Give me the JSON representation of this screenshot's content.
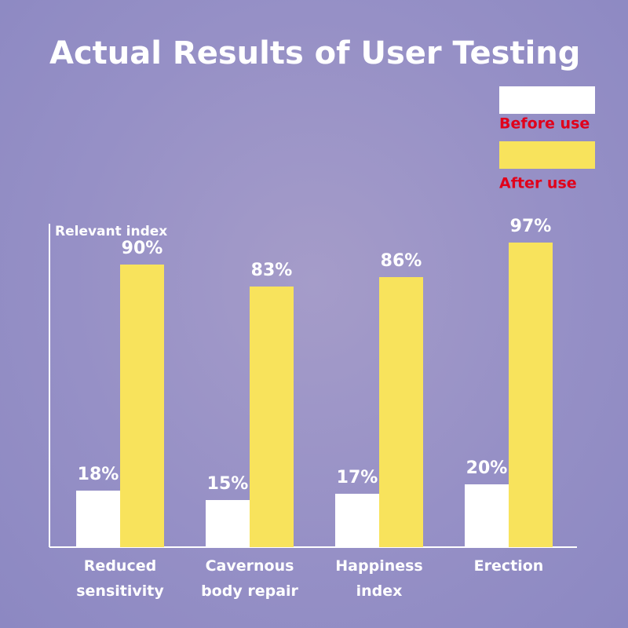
{
  "chart_data": {
    "type": "bar",
    "title": "Actual Results of User Testing",
    "y_label": "Relevant index",
    "categories": [
      "Reduced\nsensitivity",
      "Cavernous\nbody repair",
      "Happiness index",
      "Erection"
    ],
    "series": [
      {
        "name": "Before use",
        "color": "#ffffff",
        "values": [
          18,
          15,
          17,
          20
        ],
        "value_labels": [
          "18%",
          "15%",
          "17%",
          "20%"
        ]
      },
      {
        "name": "After use",
        "color": "#f8e35c",
        "values": [
          90,
          83,
          86,
          97
        ],
        "value_labels": [
          "90%",
          "83%",
          "86%",
          "97%"
        ]
      }
    ],
    "ylim": [
      0,
      100
    ],
    "legend": "top-right",
    "legend_text_color": "#e1001a"
  }
}
